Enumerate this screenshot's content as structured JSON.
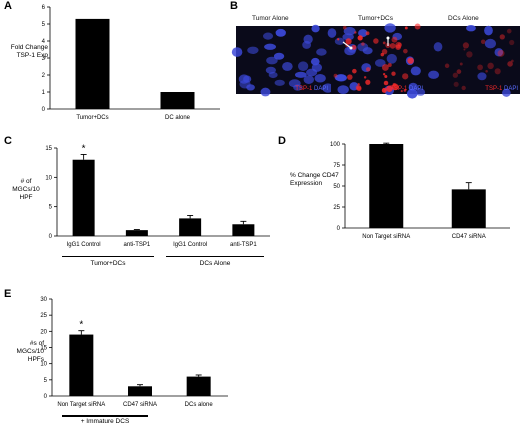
{
  "panels": {
    "A": {
      "letter": "A"
    },
    "B": {
      "letter": "B"
    },
    "C": {
      "letter": "C"
    },
    "D": {
      "letter": "D"
    },
    "E": {
      "letter": "E"
    }
  },
  "micrographs": {
    "titles": [
      "Tumor Alone",
      "Tumor+DCs",
      "DCs Alone"
    ],
    "legend_red": "TSP-1",
    "legend_sep": "/",
    "legend_blue": "DAPI",
    "colors": {
      "red": "#ff2a2a",
      "blue": "#3b48d8",
      "background": "#0a0a1a"
    }
  },
  "chart_data": [
    {
      "panel": "A",
      "type": "bar",
      "categories": [
        "Tumor+DCs",
        "DC alone"
      ],
      "values": [
        5.3,
        1.0
      ],
      "ylabel": "Fold Change TSP-1 Exp",
      "ylim": [
        0,
        6
      ],
      "yticks": [
        0,
        1,
        2,
        3,
        4,
        5,
        6
      ]
    },
    {
      "panel": "C",
      "type": "bar",
      "categories": [
        "IgG1 Control",
        "anti-TSP1",
        "IgG1 Control",
        "anti-TSP1"
      ],
      "values": [
        13.0,
        1.0,
        3.0,
        2.0
      ],
      "errors": [
        0.9,
        0.1,
        0.5,
        0.5
      ],
      "groups": [
        "Tumor+DCs",
        "DCs Alone"
      ],
      "ylabel": "# of MGCs/10 HPF",
      "ylim": [
        0,
        15
      ],
      "yticks": [
        0,
        5,
        10,
        15
      ],
      "annotations": [
        "*"
      ]
    },
    {
      "panel": "D",
      "type": "bar",
      "categories": [
        "Non Target siRNA",
        "CD47 siRNA"
      ],
      "values": [
        100,
        46
      ],
      "errors": [
        1,
        8
      ],
      "ylabel": "% Change CD47 Expression",
      "ylim": [
        0,
        100
      ],
      "yticks": [
        0,
        25,
        50,
        75,
        100
      ]
    },
    {
      "panel": "E",
      "type": "bar",
      "categories": [
        "Non Target siRNA",
        "CD47 siRNA",
        "DCs alone"
      ],
      "values": [
        19.0,
        3.0,
        6.0
      ],
      "errors": [
        1.2,
        0.5,
        0.5
      ],
      "groups": [
        "+ Immature DCS"
      ],
      "ylabel": "#s of MGCs/10 HPFs",
      "ylim": [
        0,
        30
      ],
      "yticks": [
        0,
        5,
        10,
        15,
        20,
        25,
        30
      ],
      "annotations": [
        "*"
      ]
    }
  ]
}
